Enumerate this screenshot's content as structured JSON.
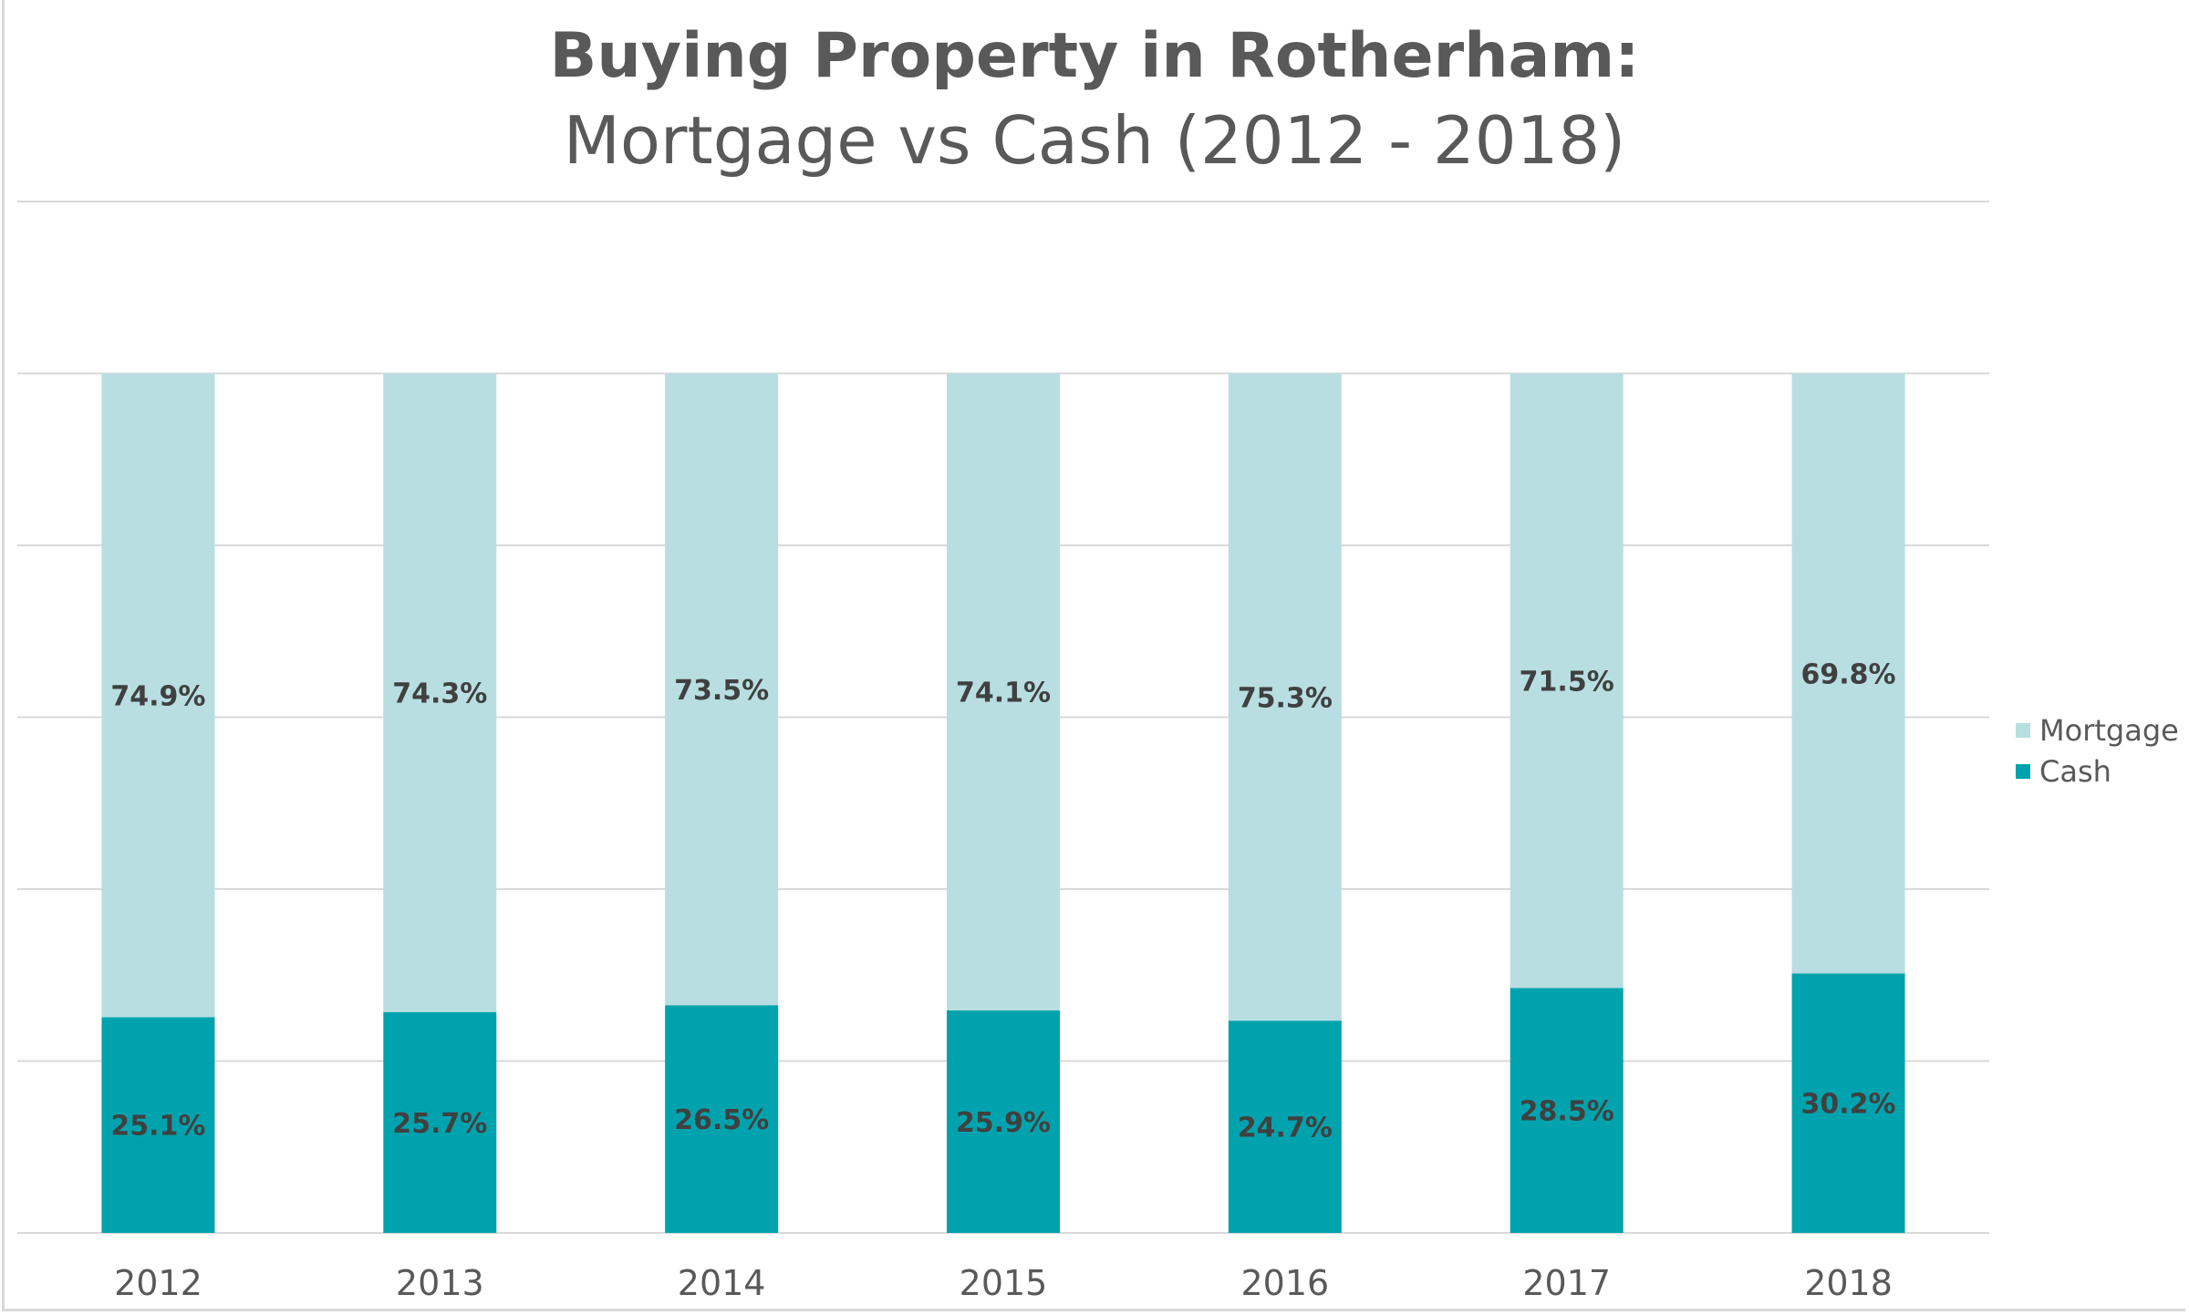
{
  "chart_data": {
    "type": "bar",
    "stacked": true,
    "title": "Buying Property in Rotherham:",
    "subtitle": "Mortgage vs Cash (2012 - 2018)",
    "categories": [
      "2012",
      "2013",
      "2014",
      "2015",
      "2016",
      "2017",
      "2018"
    ],
    "series": [
      {
        "name": "Cash",
        "color": "#00a3ad",
        "values": [
          25.1,
          25.7,
          26.5,
          25.9,
          24.7,
          28.5,
          30.2
        ],
        "labels": [
          "25.1%",
          "25.7%",
          "26.5%",
          "25.9%",
          "24.7%",
          "28.5%",
          "30.2%"
        ]
      },
      {
        "name": "Mortgage",
        "color": "#b8dee1",
        "values": [
          74.9,
          74.3,
          73.5,
          74.1,
          75.3,
          71.5,
          69.8
        ],
        "labels": [
          "74.9%",
          "74.3%",
          "73.5%",
          "74.1%",
          "75.3%",
          "71.5%",
          "69.8%"
        ]
      }
    ],
    "ylim": [
      0,
      120
    ],
    "ytick_step": 20,
    "y_tick_labels_visible": false,
    "grid": true,
    "legend_position": "right",
    "legend": [
      "Mortgage",
      "Cash"
    ]
  }
}
